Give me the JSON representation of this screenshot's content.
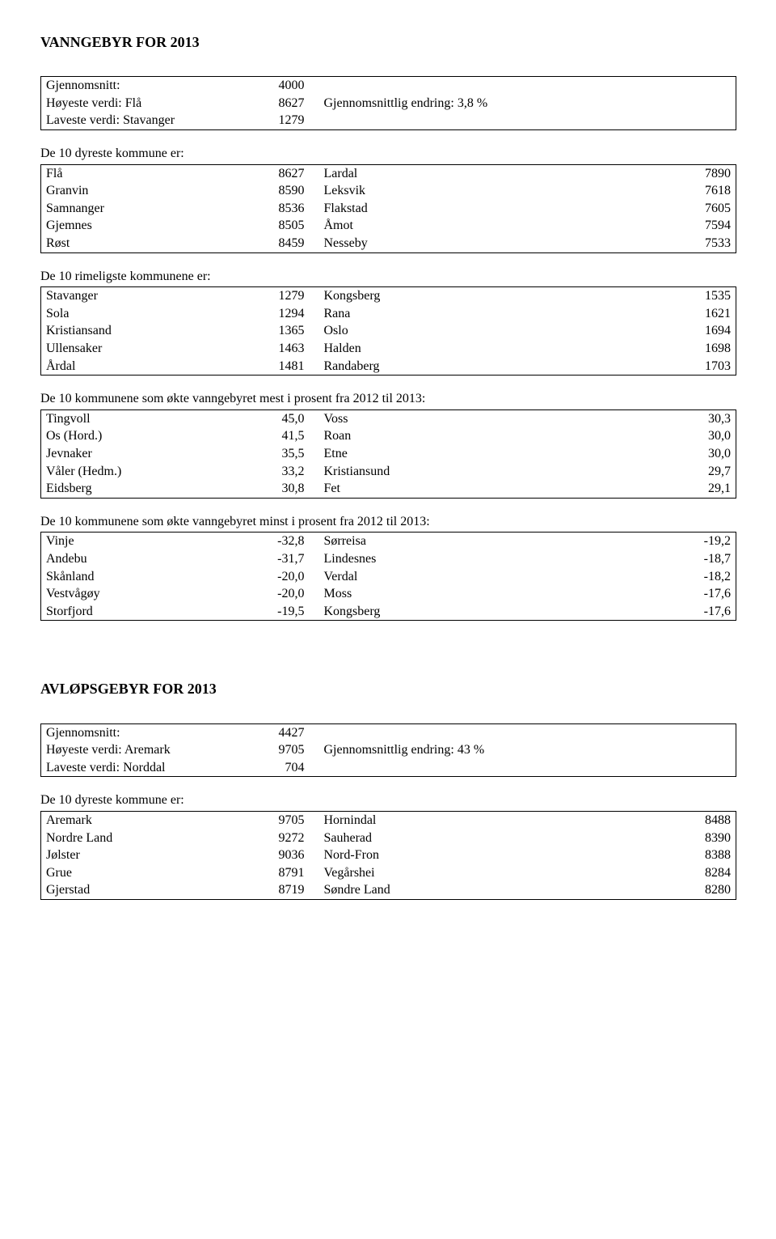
{
  "section1": {
    "title": "VANNGEBYR FOR 2013",
    "summary": {
      "rows": [
        {
          "label": "Gjennomsnitt:",
          "value": "4000",
          "note_label": "",
          "note_value": ""
        },
        {
          "label": "Høyeste verdi: Flå",
          "value": "8627",
          "note_label": "Gjennomsnittlig endring: 3,8 %",
          "note_value": ""
        },
        {
          "label": "Laveste verdi: Stavanger",
          "value": "1279",
          "note_label": "",
          "note_value": ""
        }
      ]
    },
    "dyreste_caption": "De 10 dyreste kommune er:",
    "dyreste": [
      {
        "a": "Flå",
        "av": "8627",
        "b": "Lardal",
        "bv": "7890"
      },
      {
        "a": "Granvin",
        "av": "8590",
        "b": "Leksvik",
        "bv": "7618"
      },
      {
        "a": "Samnanger",
        "av": "8536",
        "b": "Flakstad",
        "bv": "7605"
      },
      {
        "a": "Gjemnes",
        "av": "8505",
        "b": "Åmot",
        "bv": "7594"
      },
      {
        "a": "Røst",
        "av": "8459",
        "b": "Nesseby",
        "bv": "7533"
      }
    ],
    "rimeligste_caption": "De 10 rimeligste kommunene er:",
    "rimeligste": [
      {
        "a": "Stavanger",
        "av": "1279",
        "b": "Kongsberg",
        "bv": "1535"
      },
      {
        "a": "Sola",
        "av": "1294",
        "b": "Rana",
        "bv": "1621"
      },
      {
        "a": "Kristiansand",
        "av": "1365",
        "b": "Oslo",
        "bv": "1694"
      },
      {
        "a": "Ullensaker",
        "av": "1463",
        "b": "Halden",
        "bv": "1698"
      },
      {
        "a": "Årdal",
        "av": "1481",
        "b": "Randaberg",
        "bv": "1703"
      }
    ],
    "mest_caption": "De 10 kommunene som økte vanngebyret mest i prosent fra 2012 til 2013:",
    "mest": [
      {
        "a": "Tingvoll",
        "av": "45,0",
        "b": "Voss",
        "bv": "30,3"
      },
      {
        "a": "Os (Hord.)",
        "av": "41,5",
        "b": "Roan",
        "bv": "30,0"
      },
      {
        "a": "Jevnaker",
        "av": "35,5",
        "b": "Etne",
        "bv": "30,0"
      },
      {
        "a": "Våler (Hedm.)",
        "av": "33,2",
        "b": "Kristiansund",
        "bv": "29,7"
      },
      {
        "a": "Eidsberg",
        "av": "30,8",
        "b": "Fet",
        "bv": "29,1"
      }
    ],
    "minst_caption": "De 10 kommunene som økte vanngebyret minst i prosent fra 2012 til 2013:",
    "minst": [
      {
        "a": "Vinje",
        "av": "-32,8",
        "b": "Sørreisa",
        "bv": "-19,2"
      },
      {
        "a": "Andebu",
        "av": "-31,7",
        "b": "Lindesnes",
        "bv": "-18,7"
      },
      {
        "a": "Skånland",
        "av": "-20,0",
        "b": "Verdal",
        "bv": "-18,2"
      },
      {
        "a": "Vestvågøy",
        "av": "-20,0",
        "b": "Moss",
        "bv": "-17,6"
      },
      {
        "a": "Storfjord",
        "av": "-19,5",
        "b": "Kongsberg",
        "bv": "-17,6"
      }
    ]
  },
  "section2": {
    "title": "AVLØPSGEBYR FOR 2013",
    "summary": {
      "rows": [
        {
          "label": "Gjennomsnitt:",
          "value": "4427",
          "note_label": "",
          "note_value": ""
        },
        {
          "label": "Høyeste verdi: Aremark",
          "value": "9705",
          "note_label": "Gjennomsnittlig endring: 43 %",
          "note_value": ""
        },
        {
          "label": "Laveste verdi: Norddal",
          "value": "704",
          "note_label": "",
          "note_value": ""
        }
      ]
    },
    "dyreste_caption": "De 10 dyreste kommune er:",
    "dyreste": [
      {
        "a": "Aremark",
        "av": "9705",
        "b": "Hornindal",
        "bv": "8488"
      },
      {
        "a": "Nordre Land",
        "av": "9272",
        "b": "Sauherad",
        "bv": "8390"
      },
      {
        "a": "Jølster",
        "av": "9036",
        "b": "Nord-Fron",
        "bv": "8388"
      },
      {
        "a": "Grue",
        "av": "8791",
        "b": "Vegårshei",
        "bv": "8284"
      },
      {
        "a": "Gjerstad",
        "av": "8719",
        "b": "Søndre Land",
        "bv": "8280"
      }
    ]
  }
}
